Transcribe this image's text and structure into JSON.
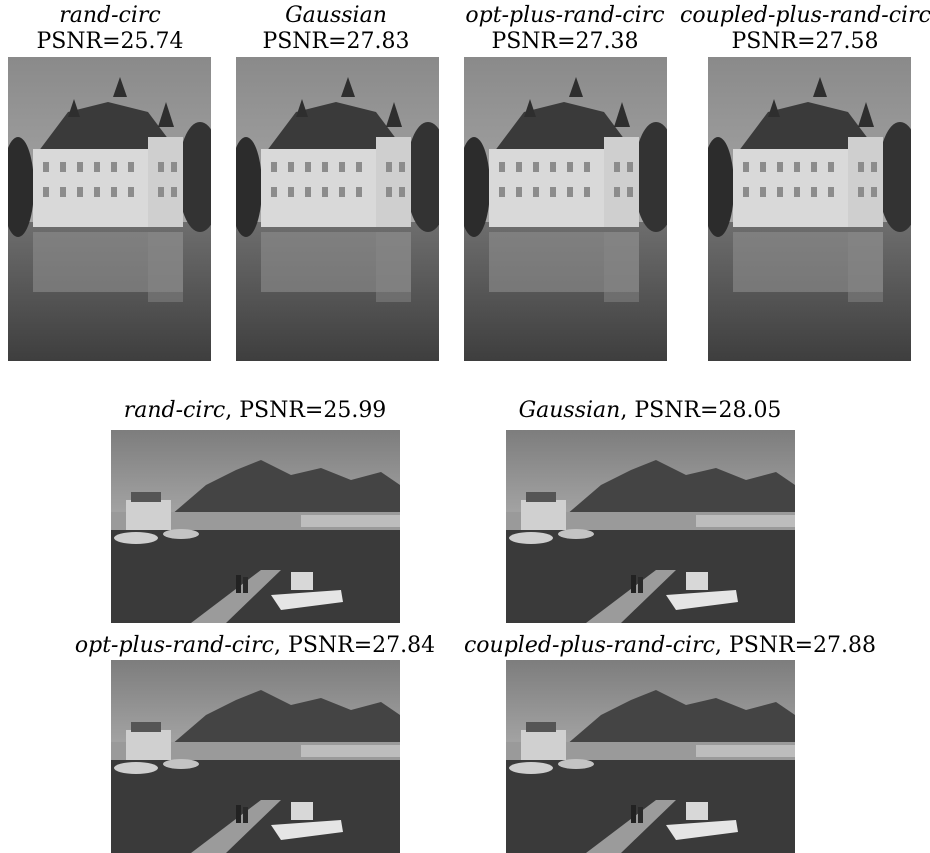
{
  "top_row": [
    {
      "method": "rand-circ",
      "psnr": "PSNR=25.74"
    },
    {
      "method": "Gaussian",
      "psnr": "PSNR=27.83"
    },
    {
      "method": "opt-plus-rand-circ",
      "psnr": "PSNR=27.38"
    },
    {
      "method": "coupled-plus-rand-circ",
      "psnr": "PSNR=27.58"
    }
  ],
  "bottom_grid": [
    {
      "method": "rand-circ",
      "psnr": "PSNR=25.99"
    },
    {
      "method": "Gaussian",
      "psnr": "PSNR=28.05"
    },
    {
      "method": "opt-plus-rand-circ",
      "psnr": "PSNR=27.84"
    },
    {
      "method": "coupled-plus-rand-circ",
      "psnr": "PSNR=27.88"
    }
  ],
  "separator": ", "
}
